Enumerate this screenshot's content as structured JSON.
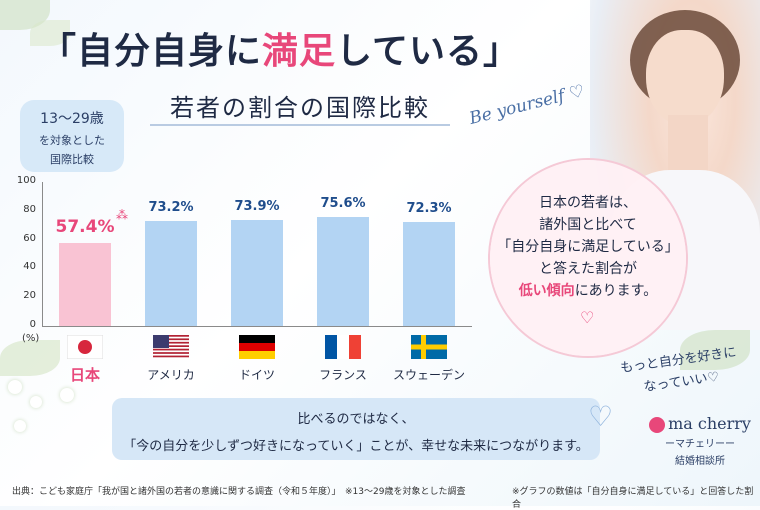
{
  "title": {
    "part1": "「自分自身に",
    "highlight": "満足",
    "part2": "している」"
  },
  "subtitle": "若者の割合の国際比較",
  "tagline": "Be yourself",
  "scope_badge": {
    "line1": "13〜29歳",
    "line2": "を対象とした",
    "line3": "国際比較"
  },
  "note": {
    "line1": "日本の若者は、",
    "line2": "諸外国と比べて",
    "line3": "「自分自身に満足している」",
    "line4": "と答えた割合が",
    "line5_highlight": "低い傾向",
    "line5_rest": "にあります。"
  },
  "cursive": {
    "line1": "もっと自分を好きに",
    "line2": "なっていい♡"
  },
  "message": {
    "line1": "比べるのではなく、",
    "line2": "「今の自分を少しずつ好きになっていく」ことが、幸せな未来につながります。"
  },
  "logo": {
    "name": "ma cherry",
    "kana": "ーマチェリーー",
    "sub": "結婚相談所"
  },
  "footer": {
    "source": "出典：こども家庭庁「我が国と諸外国の若者の意識に関する調査（令和５年度）」　※13〜29歳を対象とした調査",
    "note": "※グラフの数値は「自分自身に満足している」と回答した割合"
  },
  "colors": {
    "japan": "#f9c3d3",
    "others": "#b3d4f3",
    "japan_label": "#e8477a",
    "other_label": "#1f4d8c"
  },
  "chart_data": {
    "type": "bar",
    "categories": [
      "日本",
      "アメリカ",
      "ドイツ",
      "フランス",
      "スウェーデン"
    ],
    "values": [
      57.4,
      73.2,
      73.9,
      75.6,
      72.3
    ],
    "value_labels": [
      "57.4%",
      "73.2%",
      "73.9%",
      "75.6%",
      "72.3%"
    ],
    "yticks": [
      "0",
      "20",
      "40",
      "60",
      "80",
      "100"
    ],
    "ylim": [
      0,
      100
    ],
    "unit_label": "(%)",
    "flags": [
      "japan-flag",
      "usa-flag",
      "germany-flag",
      "france-flag",
      "sweden-flag"
    ]
  }
}
